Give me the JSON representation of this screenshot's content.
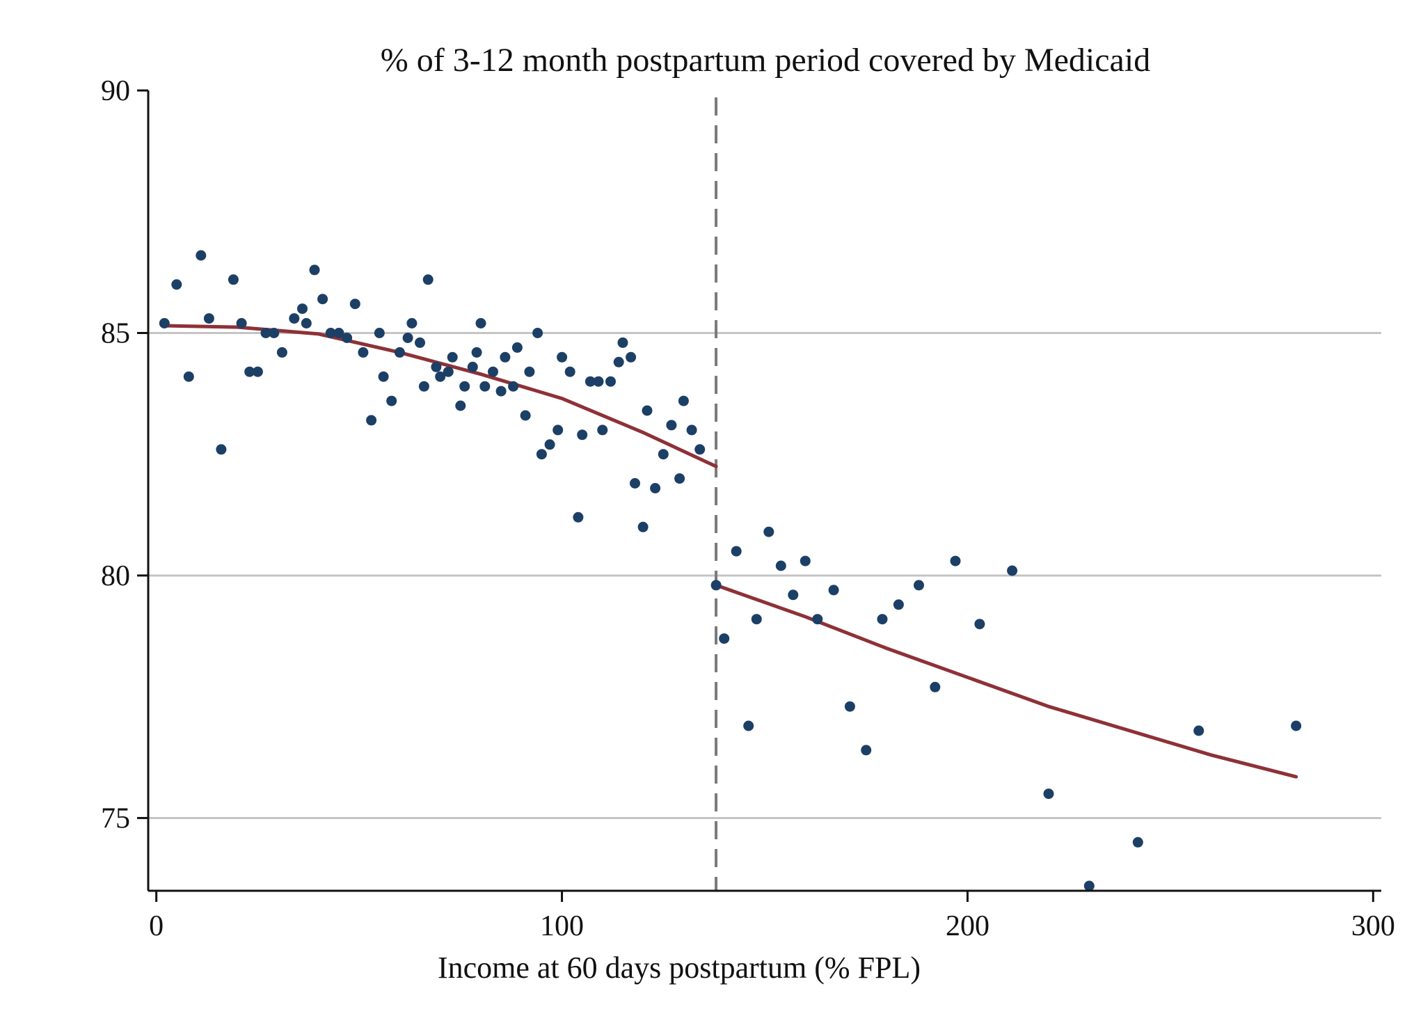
{
  "chart_data": {
    "type": "scatter",
    "title": "% of 3-12 month postpartum period covered by Medicaid",
    "xlabel": "Income at 60 days postpartum (% FPL)",
    "ylabel": "",
    "xlim": [
      -2,
      302
    ],
    "ylim": [
      73.5,
      90
    ],
    "x_ticks": [
      0,
      100,
      200,
      300
    ],
    "x_tick_labels": [
      "0",
      "100",
      "200",
      "300"
    ],
    "y_ticks": [
      75,
      80,
      85,
      90
    ],
    "y_tick_labels": [
      "75",
      "80",
      "85",
      "90"
    ],
    "y_grid": [
      75,
      80,
      85
    ],
    "cutoff_x": 138,
    "grid": true,
    "legend": "none",
    "colors": {
      "points": "#1c3f66",
      "fit": "#8e3137",
      "cutoff": "#7a7a7a",
      "grid": "#c4c4c4"
    },
    "points": [
      [
        2,
        85.2
      ],
      [
        5,
        86.0
      ],
      [
        8,
        84.1
      ],
      [
        11,
        86.6
      ],
      [
        13,
        85.3
      ],
      [
        16,
        82.6
      ],
      [
        19,
        86.1
      ],
      [
        21,
        85.2
      ],
      [
        23,
        84.2
      ],
      [
        25,
        84.2
      ],
      [
        27,
        85.0
      ],
      [
        29,
        85.0
      ],
      [
        31,
        84.6
      ],
      [
        34,
        85.3
      ],
      [
        36,
        85.5
      ],
      [
        37,
        85.2
      ],
      [
        39,
        86.3
      ],
      [
        41,
        85.7
      ],
      [
        43,
        85.0
      ],
      [
        45,
        85.0
      ],
      [
        47,
        84.9
      ],
      [
        49,
        85.6
      ],
      [
        51,
        84.6
      ],
      [
        53,
        83.2
      ],
      [
        55,
        85.0
      ],
      [
        56,
        84.1
      ],
      [
        58,
        83.6
      ],
      [
        60,
        84.6
      ],
      [
        62,
        84.9
      ],
      [
        63,
        85.2
      ],
      [
        65,
        84.8
      ],
      [
        66,
        83.9
      ],
      [
        67,
        86.1
      ],
      [
        69,
        84.3
      ],
      [
        70,
        84.1
      ],
      [
        72,
        84.2
      ],
      [
        73,
        84.5
      ],
      [
        75,
        83.5
      ],
      [
        76,
        83.9
      ],
      [
        78,
        84.3
      ],
      [
        79,
        84.6
      ],
      [
        80,
        85.2
      ],
      [
        81,
        83.9
      ],
      [
        83,
        84.2
      ],
      [
        85,
        83.8
      ],
      [
        86,
        84.5
      ],
      [
        88,
        83.9
      ],
      [
        89,
        84.7
      ],
      [
        91,
        83.3
      ],
      [
        92,
        84.2
      ],
      [
        94,
        85.0
      ],
      [
        95,
        82.5
      ],
      [
        97,
        82.7
      ],
      [
        99,
        83.0
      ],
      [
        100,
        84.5
      ],
      [
        102,
        84.2
      ],
      [
        104,
        81.2
      ],
      [
        105,
        82.9
      ],
      [
        107,
        84.0
      ],
      [
        109,
        84.0
      ],
      [
        110,
        83.0
      ],
      [
        112,
        84.0
      ],
      [
        114,
        84.4
      ],
      [
        115,
        84.8
      ],
      [
        117,
        84.5
      ],
      [
        118,
        81.9
      ],
      [
        120,
        81.0
      ],
      [
        121,
        83.4
      ],
      [
        123,
        81.8
      ],
      [
        125,
        82.5
      ],
      [
        127,
        83.1
      ],
      [
        129,
        82.0
      ],
      [
        130,
        83.6
      ],
      [
        132,
        83.0
      ],
      [
        134,
        82.6
      ],
      [
        138,
        79.8
      ],
      [
        140,
        78.7
      ],
      [
        143,
        80.5
      ],
      [
        146,
        76.9
      ],
      [
        148,
        79.1
      ],
      [
        151,
        80.9
      ],
      [
        154,
        80.2
      ],
      [
        157,
        79.6
      ],
      [
        160,
        80.3
      ],
      [
        163,
        79.1
      ],
      [
        167,
        79.7
      ],
      [
        171,
        77.3
      ],
      [
        175,
        76.4
      ],
      [
        179,
        79.1
      ],
      [
        183,
        79.4
      ],
      [
        188,
        79.8
      ],
      [
        192,
        77.7
      ],
      [
        197,
        80.3
      ],
      [
        203,
        79.0
      ],
      [
        211,
        80.1
      ],
      [
        220,
        75.5
      ],
      [
        230,
        73.6
      ],
      [
        242,
        74.5
      ],
      [
        257,
        76.8
      ],
      [
        281,
        76.9
      ]
    ],
    "series": [
      {
        "values": [
          [
            2,
            85.15
          ],
          [
            20,
            85.12
          ],
          [
            40,
            84.98
          ],
          [
            60,
            84.6
          ],
          [
            80,
            84.15
          ],
          [
            100,
            83.65
          ],
          [
            120,
            82.95
          ],
          [
            138,
            82.25
          ]
        ]
      },
      {
        "values": [
          [
            138,
            79.8
          ],
          [
            160,
            79.15
          ],
          [
            180,
            78.5
          ],
          [
            200,
            77.9
          ],
          [
            220,
            77.3
          ],
          [
            240,
            76.8
          ],
          [
            260,
            76.3
          ],
          [
            281,
            75.85
          ]
        ]
      }
    ]
  }
}
